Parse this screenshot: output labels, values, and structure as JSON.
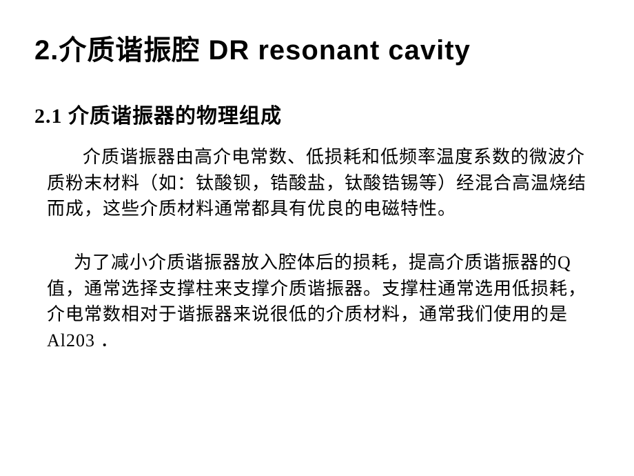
{
  "title": "2.介质谐振腔 DR resonant cavity",
  "subtitle": "2.1 介质谐振器的物理组成",
  "paragraph1": "介质谐振器由高介电常数、低损耗和低频率温度系数的微波介质粉末材料（如：钛酸钡，锆酸盐，钛酸锆锡等）经混合高温烧结而成，这些介质材料通常都具有优良的电磁特性。",
  "paragraph2": "为了减小介质谐振器放入腔体后的损耗，提高介质谐振器的Q值，通常选择支撑柱来支撑介质谐振器。支撑柱通常选用低损耗，介电常数相对于谐振器来说很低的介质材料，通常我们使用的是Al203 ．",
  "colors": {
    "background": "#ffffff",
    "text": "#000000"
  },
  "typography": {
    "title_fontsize": 40,
    "title_weight": "bold",
    "subtitle_fontsize": 30,
    "body_fontsize": 26,
    "line_height": 1.45
  }
}
